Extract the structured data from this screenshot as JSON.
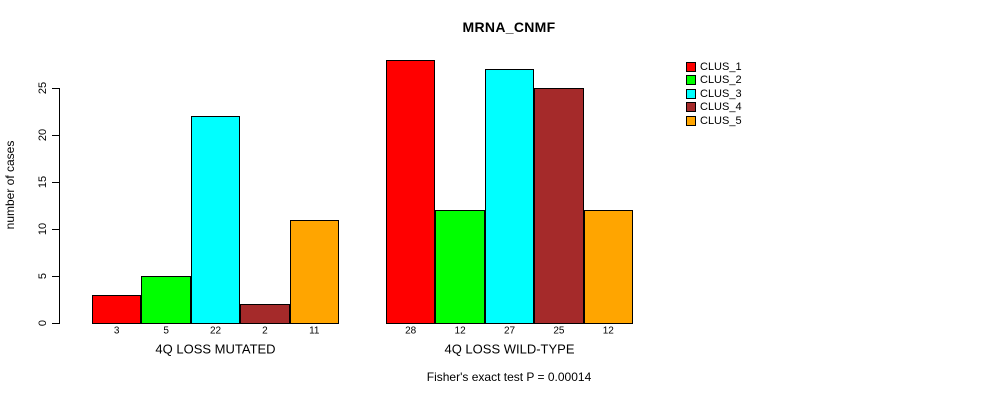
{
  "chart_data": {
    "type": "bar",
    "title": "MRNA_CNMF",
    "xlabel": "",
    "ylabel": "number of cases",
    "categories": [
      "4Q LOSS MUTATED",
      "4Q LOSS WILD-TYPE"
    ],
    "series": [
      {
        "name": "CLUS_1",
        "color": "#ff0000",
        "values": [
          3,
          28
        ]
      },
      {
        "name": "CLUS_2",
        "color": "#00ff00",
        "values": [
          5,
          12
        ]
      },
      {
        "name": "CLUS_3",
        "color": "#00ffff",
        "values": [
          22,
          27
        ]
      },
      {
        "name": "CLUS_4",
        "color": "#a52a2a",
        "values": [
          2,
          25
        ]
      },
      {
        "name": "CLUS_5",
        "color": "#ffa500",
        "values": [
          11,
          12
        ]
      }
    ],
    "y_ticks": [
      0,
      5,
      10,
      15,
      20,
      25
    ],
    "ylim": [
      0,
      28
    ],
    "grid": false,
    "bar_value_labels_shown": true,
    "bar_border_color": "#000000",
    "legend_position": "right",
    "legend_entries": [
      "CLUS_1",
      "CLUS_2",
      "CLUS_3",
      "CLUS_4",
      "CLUS_5"
    ],
    "annotation": "Fisher's exact test P = 0.00014",
    "background": "#ffffff"
  }
}
